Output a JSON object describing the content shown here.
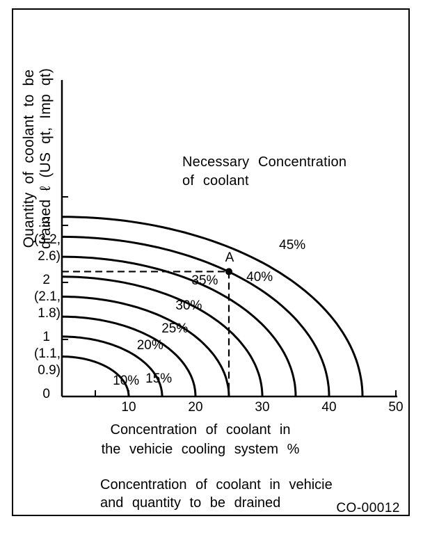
{
  "figure": {
    "drawing_code": "CO-00012",
    "caption": {
      "line1": "Concentration  of  coolant  in  vehicie",
      "line2": "and  quantity  to  be  drained"
    }
  },
  "chart_data": {
    "type": "line",
    "title": {
      "line1": "Necessary  Concentration",
      "line2": "of  coolant"
    },
    "xlabel": {
      "line1": "Concentration  of  coolant  in",
      "line2": "the  vehicie  cooling  system  %"
    },
    "ylabel": {
      "line1": "Quantity  of  coolant  to  be",
      "line2": "drained ℓ (US qt, Imp qt)"
    },
    "xlim": [
      0,
      50
    ],
    "ylim": [
      0,
      3.5
    ],
    "grid": false,
    "x_major_ticks": [
      10,
      20,
      30,
      40,
      50
    ],
    "x_minor_ticks": [
      5,
      15,
      25,
      35,
      45
    ],
    "y_minor_ticks": [
      3.5
    ],
    "y_major_ticks": [
      {
        "value": 3,
        "label": "3",
        "us_qt_line": "(3.2,",
        "imp_qt_line": "2.6)"
      },
      {
        "value": 2,
        "label": "2",
        "us_qt_line": "(2.1,",
        "imp_qt_line": "1.8)"
      },
      {
        "value": 1,
        "label": "1",
        "us_qt_line": "(1.1,",
        "imp_qt_line": "0.9)"
      },
      {
        "value": 0,
        "label": "0"
      }
    ],
    "series": [
      {
        "name": "10%",
        "necessary_concentration": 10,
        "shape": "quarter-ellipse",
        "x_axis_intercept": 10,
        "y_axis_intercept": 0.7,
        "label_anchor": {
          "x": 9.6,
          "y": 0.27
        }
      },
      {
        "name": "15%",
        "necessary_concentration": 15,
        "shape": "quarter-ellipse",
        "x_axis_intercept": 15,
        "y_axis_intercept": 1.05,
        "label_anchor": {
          "x": 14.5,
          "y": 0.31
        }
      },
      {
        "name": "20%",
        "necessary_concentration": 20,
        "shape": "quarter-ellipse",
        "x_axis_intercept": 20,
        "y_axis_intercept": 1.4,
        "label_anchor": {
          "x": 13.2,
          "y": 0.89
        }
      },
      {
        "name": "25%",
        "necessary_concentration": 25,
        "shape": "quarter-ellipse",
        "x_axis_intercept": 25,
        "y_axis_intercept": 1.75,
        "label_anchor": {
          "x": 16.9,
          "y": 1.18
        }
      },
      {
        "name": "30%",
        "necessary_concentration": 30,
        "shape": "quarter-ellipse",
        "x_axis_intercept": 30,
        "y_axis_intercept": 2.1,
        "label_anchor": {
          "x": 19.0,
          "y": 1.59
        }
      },
      {
        "name": "35%",
        "necessary_concentration": 35,
        "shape": "quarter-ellipse",
        "x_axis_intercept": 35,
        "y_axis_intercept": 2.45,
        "label_anchor": {
          "x": 21.4,
          "y": 2.02
        }
      },
      {
        "name": "40%",
        "necessary_concentration": 40,
        "shape": "quarter-ellipse",
        "x_axis_intercept": 40,
        "y_axis_intercept": 2.8,
        "label_anchor": {
          "x": 29.6,
          "y": 2.08
        }
      },
      {
        "name": "45%",
        "necessary_concentration": 45,
        "shape": "quarter-ellipse",
        "x_axis_intercept": 45,
        "y_axis_intercept": 3.15,
        "label_anchor": {
          "x": 34.5,
          "y": 2.65
        }
      }
    ],
    "marked_point": {
      "label": "A",
      "x": 25,
      "y": 2.19,
      "on_series": "40%",
      "dashed_guides_to_axes": true,
      "label_anchor": {
        "x": 25.1,
        "y": 2.43
      }
    },
    "line_color": "#000000",
    "background_color": "#ffffff"
  }
}
